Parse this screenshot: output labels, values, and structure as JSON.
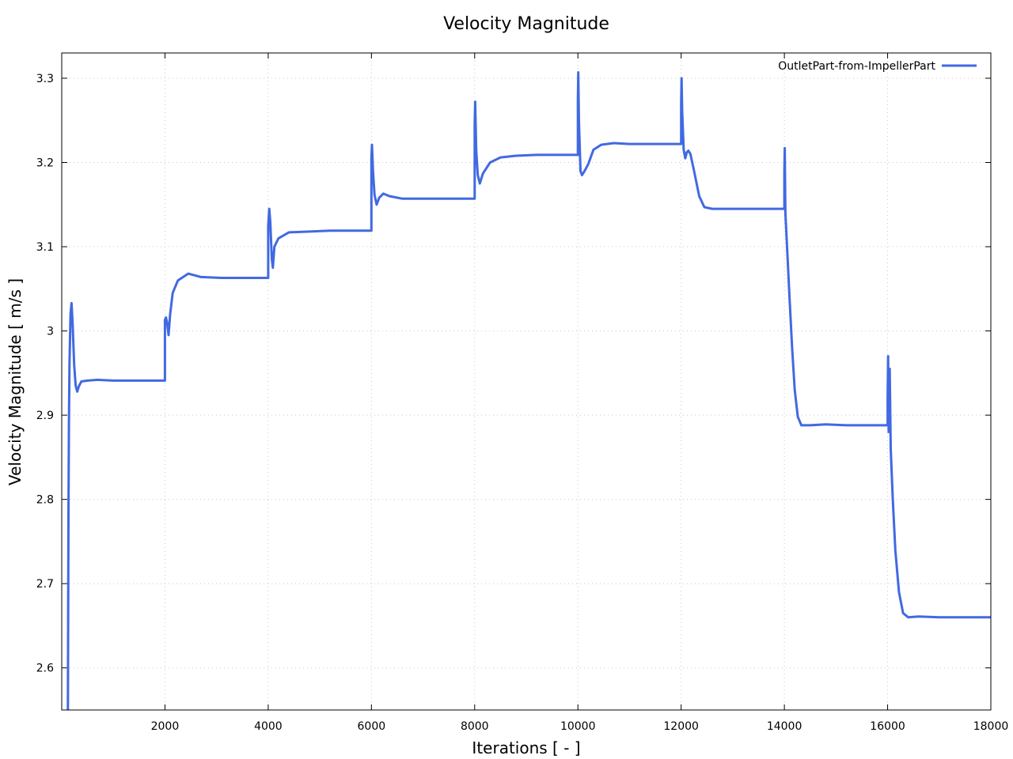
{
  "chart_data": {
    "type": "line",
    "title": "Velocity Magnitude",
    "xlabel": "Iterations [ - ]",
    "ylabel": "Velocity Magnitude [ m/s ]",
    "xlim": [
      0,
      18000
    ],
    "ylim": [
      2.55,
      3.33
    ],
    "x_ticks": [
      2000,
      4000,
      6000,
      8000,
      10000,
      12000,
      14000,
      16000,
      18000
    ],
    "y_ticks": [
      2.6,
      2.7,
      2.8,
      2.9,
      3,
      3.1,
      3.2,
      3.3
    ],
    "y_tick_labels": [
      "2.6",
      "2.7",
      "2.8",
      "2.9",
      "3",
      "3.1",
      "3.2",
      "3.3"
    ],
    "grid": true,
    "legend_position": "top-right",
    "colors": {
      "series": "#4169E1"
    },
    "series": [
      {
        "name": "OutletPart-from-ImpellerPart",
        "points": [
          [
            120,
            2.55
          ],
          [
            130,
            2.78
          ],
          [
            140,
            2.89
          ],
          [
            150,
            2.96
          ],
          [
            170,
            3.02
          ],
          [
            190,
            3.033
          ],
          [
            210,
            3.01
          ],
          [
            240,
            2.96
          ],
          [
            270,
            2.935
          ],
          [
            300,
            2.928
          ],
          [
            330,
            2.934
          ],
          [
            380,
            2.94
          ],
          [
            500,
            2.941
          ],
          [
            700,
            2.942
          ],
          [
            1000,
            2.941
          ],
          [
            2000,
            2.941
          ],
          [
            2000,
            3.013
          ],
          [
            2020,
            3.016
          ],
          [
            2040,
            3.01
          ],
          [
            2070,
            2.995
          ],
          [
            2100,
            3.02
          ],
          [
            2150,
            3.045
          ],
          [
            2250,
            3.06
          ],
          [
            2450,
            3.068
          ],
          [
            2700,
            3.064
          ],
          [
            3100,
            3.063
          ],
          [
            4000,
            3.063
          ],
          [
            4000,
            3.125
          ],
          [
            4020,
            3.145
          ],
          [
            4040,
            3.13
          ],
          [
            4070,
            3.085
          ],
          [
            4090,
            3.075
          ],
          [
            4120,
            3.1
          ],
          [
            4200,
            3.11
          ],
          [
            4400,
            3.117
          ],
          [
            4800,
            3.118
          ],
          [
            5200,
            3.119
          ],
          [
            6000,
            3.119
          ],
          [
            6000,
            3.205
          ],
          [
            6010,
            3.221
          ],
          [
            6030,
            3.19
          ],
          [
            6060,
            3.162
          ],
          [
            6100,
            3.15
          ],
          [
            6150,
            3.158
          ],
          [
            6230,
            3.163
          ],
          [
            6350,
            3.16
          ],
          [
            6600,
            3.157
          ],
          [
            7100,
            3.157
          ],
          [
            8000,
            3.157
          ],
          [
            8000,
            3.245
          ],
          [
            8010,
            3.272
          ],
          [
            8030,
            3.215
          ],
          [
            8060,
            3.185
          ],
          [
            8100,
            3.175
          ],
          [
            8160,
            3.187
          ],
          [
            8300,
            3.2
          ],
          [
            8500,
            3.206
          ],
          [
            8800,
            3.208
          ],
          [
            9200,
            3.209
          ],
          [
            10000,
            3.209
          ],
          [
            10000,
            3.275
          ],
          [
            10008,
            3.307
          ],
          [
            10020,
            3.25
          ],
          [
            10050,
            3.19
          ],
          [
            10080,
            3.185
          ],
          [
            10130,
            3.19
          ],
          [
            10200,
            3.198
          ],
          [
            10300,
            3.215
          ],
          [
            10450,
            3.221
          ],
          [
            10700,
            3.223
          ],
          [
            11000,
            3.222
          ],
          [
            12000,
            3.222
          ],
          [
            12000,
            3.27
          ],
          [
            12008,
            3.3
          ],
          [
            12020,
            3.26
          ],
          [
            12050,
            3.215
          ],
          [
            12080,
            3.205
          ],
          [
            12110,
            3.212
          ],
          [
            12140,
            3.214
          ],
          [
            12180,
            3.21
          ],
          [
            12250,
            3.19
          ],
          [
            12350,
            3.16
          ],
          [
            12450,
            3.147
          ],
          [
            12600,
            3.145
          ],
          [
            13000,
            3.145
          ],
          [
            14000,
            3.145
          ],
          [
            14000,
            3.19
          ],
          [
            14008,
            3.217
          ],
          [
            14020,
            3.14
          ],
          [
            14060,
            3.09
          ],
          [
            14100,
            3.04
          ],
          [
            14150,
            2.98
          ],
          [
            14200,
            2.93
          ],
          [
            14260,
            2.898
          ],
          [
            14330,
            2.888
          ],
          [
            14500,
            2.888
          ],
          [
            14800,
            2.889
          ],
          [
            15200,
            2.888
          ],
          [
            16000,
            2.888
          ],
          [
            16000,
            2.92
          ],
          [
            16010,
            2.97
          ],
          [
            16020,
            2.88
          ],
          [
            16040,
            2.955
          ],
          [
            16060,
            2.86
          ],
          [
            16100,
            2.8
          ],
          [
            16150,
            2.74
          ],
          [
            16220,
            2.69
          ],
          [
            16300,
            2.665
          ],
          [
            16400,
            2.66
          ],
          [
            16600,
            2.661
          ],
          [
            17000,
            2.66
          ],
          [
            18000,
            2.66
          ]
        ]
      }
    ]
  }
}
